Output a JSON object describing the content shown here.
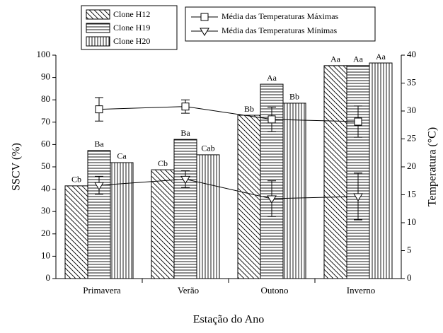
{
  "chart_data": {
    "type": "bar",
    "x_label": "Estação do Ano",
    "y_label": "SSCV (%)",
    "y2_label": "Temperatura (°C)",
    "categories": [
      "Primavera",
      "Verão",
      "Outono",
      "Inverno"
    ],
    "ylim": [
      0,
      100
    ],
    "yticks": [
      0,
      10,
      20,
      30,
      40,
      50,
      60,
      70,
      80,
      90,
      100
    ],
    "y2lim": [
      0,
      40
    ],
    "y2ticks": [
      0,
      5,
      10,
      15,
      20,
      25,
      30,
      35,
      40
    ],
    "series": [
      {
        "name": "Clone H12",
        "pattern": "diagonal",
        "color": "#000000",
        "values": [
          41.5,
          48.7,
          73.1,
          95.3
        ],
        "labels": [
          "Cb",
          "Cb",
          "Bb",
          "Aa"
        ]
      },
      {
        "name": "Clone H19",
        "pattern": "horizontal",
        "color": "#000000",
        "values": [
          57.3,
          62.3,
          87,
          95.3
        ],
        "labels": [
          "Ba",
          "Ba",
          "Aa",
          "Aa"
        ]
      },
      {
        "name": "Clone H20",
        "pattern": "vertical",
        "color": "#000000",
        "values": [
          51.9,
          55.4,
          78.5,
          96.5
        ],
        "labels": [
          "Ca",
          "Cab",
          "Bb",
          "Aa"
        ]
      },
      {
        "name": "Média das Temperaturas Máximas",
        "axis": "y2",
        "marker": "square",
        "color": "#000000",
        "values": [
          30.3,
          30.8,
          28.5,
          28.1
        ],
        "errors": [
          2.1,
          1.2,
          2.2,
          2.8
        ]
      },
      {
        "name": "Média das Temperaturas Mínimas",
        "axis": "y2",
        "marker": "triangle-down",
        "color": "#000000",
        "values": [
          16.7,
          17.8,
          14.3,
          14.7
        ],
        "errors": [
          1.6,
          1.5,
          3.2,
          4.2
        ]
      }
    ]
  }
}
